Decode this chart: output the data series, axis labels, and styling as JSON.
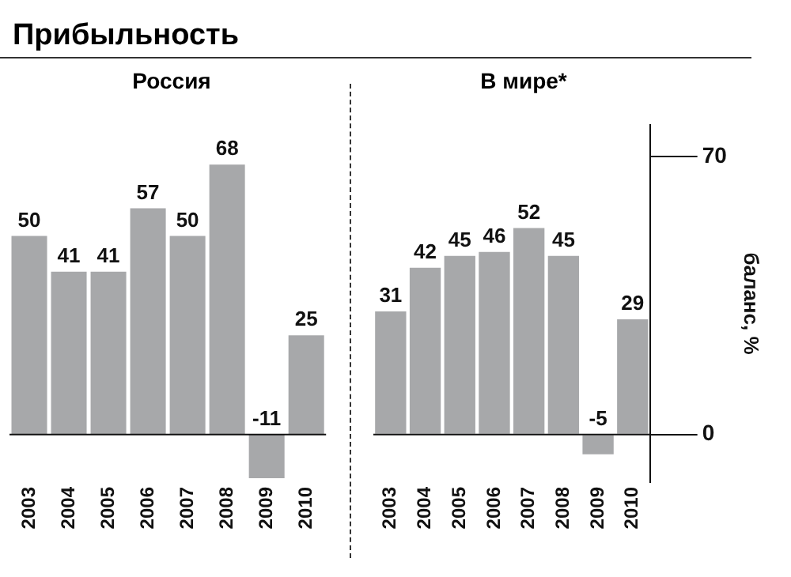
{
  "chart_data": [
    {
      "type": "bar",
      "title": "Прибыльность",
      "subtitle": "Россия",
      "categories": [
        "2003",
        "2004",
        "2005",
        "2006",
        "2007",
        "2008",
        "2009",
        "2010"
      ],
      "values": [
        50,
        41,
        41,
        57,
        50,
        68,
        -11,
        25
      ],
      "color": "#a7a8aa",
      "data_labels": true,
      "tick_labels": "x"
    },
    {
      "type": "bar",
      "subtitle": "В мире*",
      "categories": [
        "2003",
        "2004",
        "2005",
        "2006",
        "2007",
        "2008",
        "2009",
        "2010"
      ],
      "values": [
        31,
        42,
        45,
        46,
        52,
        45,
        -5,
        29
      ],
      "color": "#a7a8aa",
      "ylim": [
        -12,
        78
      ],
      "yticks": [
        0,
        70
      ],
      "ylabel": "баланс, %",
      "data_labels": true
    }
  ]
}
